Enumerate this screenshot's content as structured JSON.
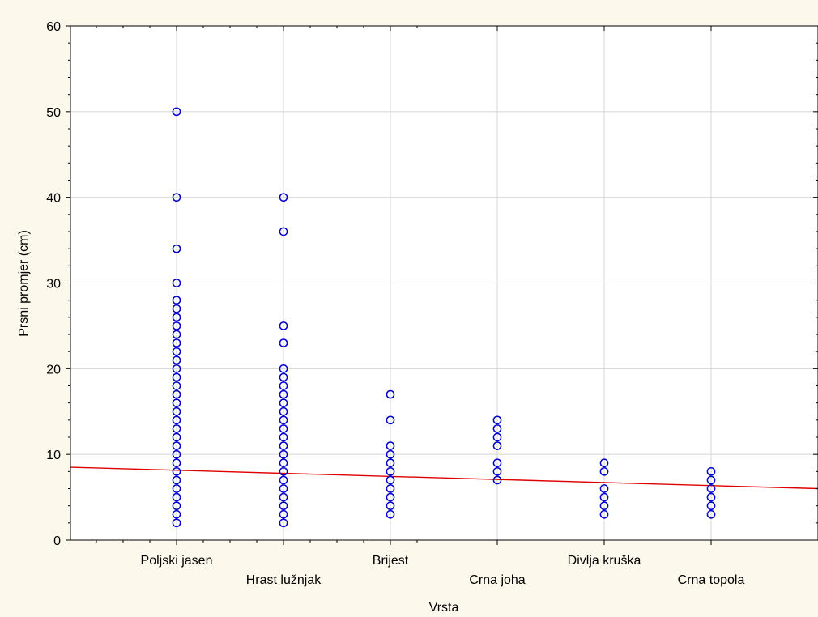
{
  "chart_data": {
    "type": "scatter",
    "xlabel": "Vrsta",
    "ylabel": "Prsni promjer (cm)",
    "ylim": [
      0,
      60
    ],
    "yticks": [
      "0",
      "10",
      "20",
      "30",
      "40",
      "50",
      "60"
    ],
    "categories": [
      "Poljski jasen",
      "Hrast lužnjak",
      "Brijest",
      "Crna joha",
      "Divlja kruška",
      "Crna topola"
    ],
    "grid": true,
    "point_color": "#0000cc",
    "trend_color": "#e00000",
    "series": [
      {
        "values": [
          [
            0,
            50
          ],
          [
            0,
            40
          ],
          [
            0,
            34
          ],
          [
            0,
            30
          ],
          [
            0,
            28
          ],
          [
            0,
            27
          ],
          [
            0,
            26
          ],
          [
            0,
            25
          ],
          [
            0,
            24
          ],
          [
            0,
            23
          ],
          [
            0,
            22
          ],
          [
            0,
            21
          ],
          [
            0,
            20
          ],
          [
            0,
            19
          ],
          [
            0,
            18
          ],
          [
            0,
            17
          ],
          [
            0,
            16
          ],
          [
            0,
            15
          ],
          [
            0,
            14
          ],
          [
            0,
            13
          ],
          [
            0,
            12
          ],
          [
            0,
            11
          ],
          [
            0,
            10
          ],
          [
            0,
            9
          ],
          [
            0,
            8
          ],
          [
            0,
            7
          ],
          [
            0,
            6
          ],
          [
            0,
            5
          ],
          [
            0,
            4
          ],
          [
            0,
            3
          ],
          [
            0,
            2
          ],
          [
            1,
            40
          ],
          [
            1,
            36
          ],
          [
            1,
            25
          ],
          [
            1,
            23
          ],
          [
            1,
            20
          ],
          [
            1,
            19
          ],
          [
            1,
            18
          ],
          [
            1,
            17
          ],
          [
            1,
            16
          ],
          [
            1,
            15
          ],
          [
            1,
            14
          ],
          [
            1,
            13
          ],
          [
            1,
            12
          ],
          [
            1,
            11
          ],
          [
            1,
            10
          ],
          [
            1,
            9
          ],
          [
            1,
            8
          ],
          [
            1,
            7
          ],
          [
            1,
            6
          ],
          [
            1,
            5
          ],
          [
            1,
            4
          ],
          [
            1,
            3
          ],
          [
            1,
            2
          ],
          [
            2,
            17
          ],
          [
            2,
            14
          ],
          [
            2,
            11
          ],
          [
            2,
            10
          ],
          [
            2,
            9
          ],
          [
            2,
            8
          ],
          [
            2,
            7
          ],
          [
            2,
            6
          ],
          [
            2,
            5
          ],
          [
            2,
            4
          ],
          [
            2,
            3
          ],
          [
            3,
            14
          ],
          [
            3,
            13
          ],
          [
            3,
            12
          ],
          [
            3,
            11
          ],
          [
            3,
            9
          ],
          [
            3,
            8
          ],
          [
            3,
            7
          ],
          [
            4,
            9
          ],
          [
            4,
            8
          ],
          [
            4,
            6
          ],
          [
            4,
            5
          ],
          [
            4,
            4
          ],
          [
            4,
            3
          ],
          [
            5,
            8
          ],
          [
            5,
            7
          ],
          [
            5,
            6
          ],
          [
            5,
            5
          ],
          [
            5,
            4
          ],
          [
            5,
            3
          ]
        ]
      }
    ],
    "trend_line": {
      "x_start": -1,
      "y_start": 8.5,
      "x_end": 6,
      "y_end": 6.0
    }
  }
}
